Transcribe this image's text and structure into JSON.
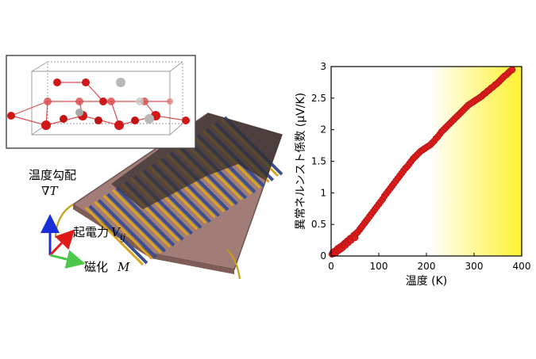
{
  "diagram": {
    "labels": {
      "temp_gradient": "温度勾配",
      "grad_symbol": "∇T",
      "emf": "起電力",
      "emf_symbol": "V",
      "emf_subscript": "ij",
      "magnetization": "磁化",
      "magnetization_symbol": "M"
    },
    "colors": {
      "atom_red": "#d01818",
      "atom_gray": "#b8b8b8",
      "stripe_gold": "#d9a520",
      "stripe_blue": "#3a4f8c",
      "arrow_blue": "#1a2fd8",
      "arrow_red": "#e01a1a",
      "arrow_green": "#4cc84c"
    }
  },
  "chart_data": {
    "type": "scatter",
    "xlabel": "温度 (K)",
    "ylabel": "異常ネルンスト係数 (μV/K)",
    "xlim": [
      0,
      400
    ],
    "ylim": [
      0,
      3
    ],
    "xticks": [
      "0",
      "100",
      "200",
      "300",
      "400"
    ],
    "yticks": [
      "0",
      "0.5",
      "1",
      "1.5",
      "2",
      "2.5",
      "3"
    ],
    "highlight_region": {
      "x_from": 205,
      "x_to": 400,
      "color_from": "#ffffff",
      "color_to": "#fff230"
    },
    "series": [
      {
        "color": "#dd1c1c",
        "points": [
          [
            2,
            0.03
          ],
          [
            4,
            0.06
          ],
          [
            6,
            0.04
          ],
          [
            8,
            0.08
          ],
          [
            10,
            0.05
          ],
          [
            12,
            0.1
          ],
          [
            14,
            0.12
          ],
          [
            16,
            0.09
          ],
          [
            18,
            0.14
          ],
          [
            20,
            0.11
          ],
          [
            22,
            0.16
          ],
          [
            24,
            0.13
          ],
          [
            26,
            0.18
          ],
          [
            28,
            0.2
          ],
          [
            30,
            0.17
          ],
          [
            32,
            0.22
          ],
          [
            34,
            0.24
          ],
          [
            36,
            0.21
          ],
          [
            38,
            0.26
          ],
          [
            40,
            0.28
          ],
          [
            42,
            0.25
          ],
          [
            45,
            0.3
          ],
          [
            48,
            0.33
          ],
          [
            50,
            0.29
          ],
          [
            53,
            0.36
          ],
          [
            56,
            0.38
          ],
          [
            60,
            0.42
          ],
          [
            63,
            0.45
          ],
          [
            66,
            0.48
          ],
          [
            70,
            0.52
          ],
          [
            73,
            0.55
          ],
          [
            76,
            0.58
          ],
          [
            80,
            0.62
          ],
          [
            84,
            0.66
          ],
          [
            88,
            0.7
          ],
          [
            92,
            0.74
          ],
          [
            96,
            0.78
          ],
          [
            100,
            0.82
          ],
          [
            104,
            0.86
          ],
          [
            108,
            0.9
          ],
          [
            112,
            0.95
          ],
          [
            116,
            0.99
          ],
          [
            120,
            1.03
          ],
          [
            124,
            1.07
          ],
          [
            128,
            1.11
          ],
          [
            132,
            1.15
          ],
          [
            136,
            1.19
          ],
          [
            140,
            1.23
          ],
          [
            144,
            1.27
          ],
          [
            148,
            1.31
          ],
          [
            152,
            1.35
          ],
          [
            156,
            1.39
          ],
          [
            160,
            1.42
          ],
          [
            164,
            1.46
          ],
          [
            168,
            1.5
          ],
          [
            172,
            1.54
          ],
          [
            176,
            1.57
          ],
          [
            180,
            1.6
          ],
          [
            184,
            1.63
          ],
          [
            188,
            1.66
          ],
          [
            192,
            1.68
          ],
          [
            196,
            1.7
          ],
          [
            200,
            1.72
          ],
          [
            204,
            1.74
          ],
          [
            208,
            1.76
          ],
          [
            212,
            1.79
          ],
          [
            216,
            1.82
          ],
          [
            220,
            1.86
          ],
          [
            224,
            1.89
          ],
          [
            228,
            1.93
          ],
          [
            232,
            1.97
          ],
          [
            236,
            2.0
          ],
          [
            240,
            2.03
          ],
          [
            244,
            2.06
          ],
          [
            248,
            2.09
          ],
          [
            252,
            2.12
          ],
          [
            256,
            2.15
          ],
          [
            260,
            2.18
          ],
          [
            264,
            2.21
          ],
          [
            268,
            2.24
          ],
          [
            272,
            2.27
          ],
          [
            276,
            2.3
          ],
          [
            280,
            2.33
          ],
          [
            284,
            2.36
          ],
          [
            288,
            2.39
          ],
          [
            292,
            2.41
          ],
          [
            296,
            2.43
          ],
          [
            300,
            2.45
          ],
          [
            304,
            2.47
          ],
          [
            308,
            2.49
          ],
          [
            312,
            2.51
          ],
          [
            316,
            2.53
          ],
          [
            320,
            2.56
          ],
          [
            324,
            2.58
          ],
          [
            328,
            2.61
          ],
          [
            332,
            2.63
          ],
          [
            336,
            2.66
          ],
          [
            340,
            2.68
          ],
          [
            344,
            2.71
          ],
          [
            348,
            2.73
          ],
          [
            352,
            2.76
          ],
          [
            356,
            2.79
          ],
          [
            360,
            2.82
          ],
          [
            364,
            2.85
          ],
          [
            368,
            2.87
          ],
          [
            372,
            2.9
          ],
          [
            376,
            2.93
          ],
          [
            380,
            2.95
          ]
        ]
      }
    ],
    "grid": false
  }
}
